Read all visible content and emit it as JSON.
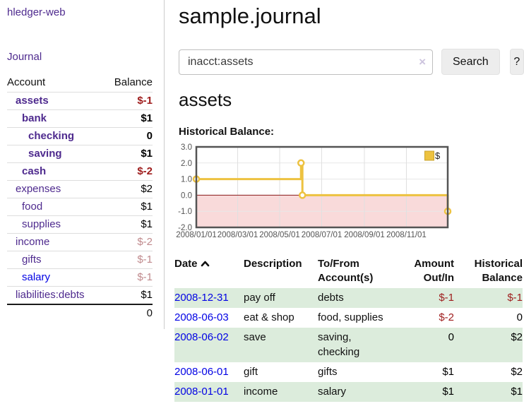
{
  "app": {
    "brand": "hledger-web"
  },
  "sidebar": {
    "journal_link": "Journal",
    "accounts_table": {
      "account_header": "Account",
      "balance_header": "Balance",
      "rows": [
        {
          "account": "assets",
          "balance": "$-1"
        },
        {
          "account": "bank",
          "balance": "$1"
        },
        {
          "account": "checking",
          "balance": "0"
        },
        {
          "account": "saving",
          "balance": "$1"
        },
        {
          "account": "cash",
          "balance": "$-2"
        },
        {
          "account": "expenses",
          "balance": "$2"
        },
        {
          "account": "food",
          "balance": "$1"
        },
        {
          "account": "supplies",
          "balance": "$1"
        },
        {
          "account": "income",
          "balance": "$-2"
        },
        {
          "account": "gifts",
          "balance": "$-1"
        },
        {
          "account": "salary",
          "balance": "$-1"
        },
        {
          "account": "liabilities:debts",
          "balance": "$1"
        }
      ],
      "total": "0"
    }
  },
  "main": {
    "title": "sample.journal",
    "search": {
      "value": "inacct:assets",
      "clear_icon": "×",
      "button": "Search",
      "help_button": "?"
    },
    "account_heading": "assets",
    "chart_heading": "Historical Balance:"
  },
  "chart_data": {
    "type": "line",
    "title": "Historical Balance",
    "step": true,
    "series": [
      {
        "name": "$",
        "color": "#edc240",
        "points": [
          [
            "2008-01-01",
            1
          ],
          [
            "2008-06-01",
            2
          ],
          [
            "2008-06-03",
            0
          ],
          [
            "2008-12-31",
            -1
          ]
        ]
      }
    ],
    "xrange": [
      "2008-01-01",
      "2008-12-31"
    ],
    "ylim": [
      -2,
      3
    ],
    "ytick_labels": [
      "3.0",
      "2.0",
      "1.0",
      "0.0",
      "-1.0",
      "-2.0"
    ],
    "xtick_labels": [
      "2008/01/01",
      "2008/03/01",
      "2008/05/01",
      "2008/07/01",
      "2008/09/01",
      "2008/11/01"
    ],
    "legend": "$",
    "legend_position": "top-right",
    "grid": true,
    "negative_region_color": "#f9dada",
    "zero_line_color": "#8b1a1a",
    "border_color": "#545454"
  },
  "register": {
    "headers": {
      "date": "Date",
      "description": "Description",
      "tofrom": "To/From Account(s)",
      "amount": "Amount Out/In",
      "balance": "Historical Balance"
    },
    "rows": [
      {
        "date": "2008-12-31",
        "description": "pay off",
        "accounts": "debts",
        "amount": "$-1",
        "balance": "$-1"
      },
      {
        "date": "2008-06-03",
        "description": "eat & shop",
        "accounts": "food, supplies",
        "amount": "$-2",
        "balance": "0"
      },
      {
        "date": "2008-06-02",
        "description": "save",
        "accounts": "saving, checking",
        "amount": "0",
        "balance": "$2"
      },
      {
        "date": "2008-06-01",
        "description": "gift",
        "accounts": "gifts",
        "amount": "$1",
        "balance": "$2"
      },
      {
        "date": "2008-01-01",
        "description": "income",
        "accounts": "salary",
        "amount": "$1",
        "balance": "$1"
      }
    ]
  }
}
